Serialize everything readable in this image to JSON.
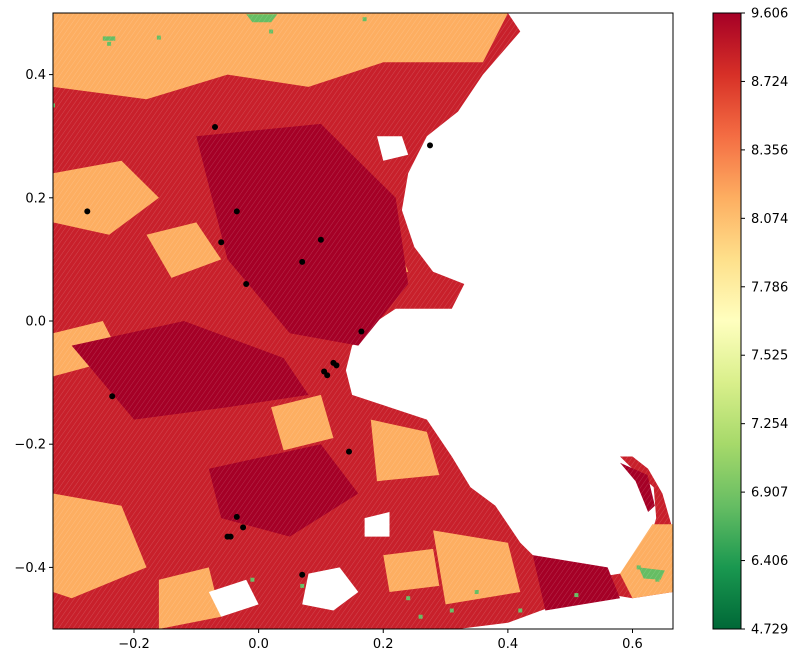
{
  "chart_data": {
    "type": "scatter",
    "title": "",
    "xlabel": "",
    "ylabel": "",
    "xlim": [
      -0.33,
      0.665
    ],
    "ylim": [
      -0.5,
      0.5
    ],
    "x_ticks": [
      -0.2,
      0.0,
      0.2,
      0.4,
      0.6
    ],
    "y_ticks": [
      0.4,
      0.2,
      0.0,
      -0.2,
      -0.4
    ],
    "x_tick_labels": [
      "−0.2",
      "0.0",
      "0.2",
      "0.4",
      "0.6"
    ],
    "y_tick_labels": [
      "0.4",
      "0.2",
      "0.0",
      "−0.2",
      "−0.4"
    ],
    "grid": false,
    "colormap": "RdYlGn_r",
    "colorbar": {
      "min": 4.729,
      "max": 9.606,
      "tick_labels": [
        "9.606",
        "8.724",
        "8.356",
        "8.074",
        "7.786",
        "7.525",
        "7.254",
        "6.907",
        "6.406",
        "4.729"
      ],
      "colors": [
        "#006837",
        "#1a9850",
        "#66bd63",
        "#a6d96a",
        "#d9ef8b",
        "#ffffbf",
        "#fee08b",
        "#fdae61",
        "#f46d43",
        "#d73027",
        "#a50026"
      ]
    },
    "colors": {
      "dark_red": "#a50026",
      "red": "#c8202b",
      "mid_red": "#d73027",
      "orange": "#fdae61",
      "light_orange": "#fdd08a",
      "green": "#66bd63",
      "black": "#000000"
    },
    "land_regions": [
      {
        "name": "mainland",
        "poly": [
          [
            -0.33,
            0.5
          ],
          [
            0.4,
            0.5
          ],
          [
            0.42,
            0.47
          ],
          [
            0.36,
            0.4
          ],
          [
            0.32,
            0.34
          ],
          [
            0.27,
            0.3
          ],
          [
            0.24,
            0.24
          ],
          [
            0.23,
            0.18
          ],
          [
            0.25,
            0.12
          ],
          [
            0.28,
            0.08
          ],
          [
            0.33,
            0.06
          ],
          [
            0.31,
            0.02
          ],
          [
            0.22,
            0.02
          ],
          [
            0.19,
            0.0
          ],
          [
            0.15,
            -0.04
          ],
          [
            0.14,
            -0.08
          ],
          [
            0.15,
            -0.12
          ],
          [
            0.21,
            -0.14
          ],
          [
            0.27,
            -0.16
          ],
          [
            0.31,
            -0.22
          ],
          [
            0.34,
            -0.27
          ],
          [
            0.38,
            -0.3
          ],
          [
            0.42,
            -0.36
          ],
          [
            0.44,
            -0.38
          ],
          [
            0.46,
            -0.4
          ],
          [
            0.52,
            -0.42
          ],
          [
            0.58,
            -0.41
          ],
          [
            0.62,
            -0.38
          ],
          [
            0.638,
            -0.32
          ],
          [
            0.634,
            -0.27
          ],
          [
            0.6,
            -0.24
          ],
          [
            0.58,
            -0.22
          ],
          [
            0.6,
            -0.22
          ],
          [
            0.625,
            -0.24
          ],
          [
            0.648,
            -0.28
          ],
          [
            0.665,
            -0.34
          ],
          [
            0.665,
            -0.44
          ],
          [
            0.6,
            -0.45
          ],
          [
            0.54,
            -0.44
          ],
          [
            0.48,
            -0.46
          ],
          [
            0.4,
            -0.49
          ],
          [
            0.32,
            -0.5
          ],
          [
            -0.33,
            -0.5
          ]
        ]
      }
    ],
    "water_holes": [
      {
        "name": "bay-inlet-north",
        "poly": [
          [
            0.19,
            0.3
          ],
          [
            0.23,
            0.3
          ],
          [
            0.24,
            0.27
          ],
          [
            0.2,
            0.26
          ]
        ]
      },
      {
        "name": "bay-inlet-south",
        "poly": [
          [
            0.08,
            -0.41
          ],
          [
            0.13,
            -0.4
          ],
          [
            0.16,
            -0.44
          ],
          [
            0.12,
            -0.47
          ],
          [
            0.07,
            -0.46
          ]
        ]
      },
      {
        "name": "bay-inlet-southwest",
        "poly": [
          [
            -0.08,
            -0.44
          ],
          [
            -0.02,
            -0.42
          ],
          [
            0.0,
            -0.46
          ],
          [
            -0.06,
            -0.48
          ]
        ]
      },
      {
        "name": "harbor-islands",
        "poly": [
          [
            0.17,
            -0.32
          ],
          [
            0.21,
            -0.31
          ],
          [
            0.21,
            -0.35
          ],
          [
            0.17,
            -0.35
          ]
        ]
      }
    ],
    "patches": [
      {
        "tone": "orange",
        "poly": [
          [
            -0.33,
            0.5
          ],
          [
            0.4,
            0.5
          ],
          [
            0.36,
            0.42
          ],
          [
            0.2,
            0.42
          ],
          [
            0.08,
            0.38
          ],
          [
            -0.05,
            0.4
          ],
          [
            -0.18,
            0.36
          ],
          [
            -0.33,
            0.38
          ]
        ]
      },
      {
        "tone": "orange",
        "poly": [
          [
            -0.33,
            0.24
          ],
          [
            -0.22,
            0.26
          ],
          [
            -0.16,
            0.2
          ],
          [
            -0.24,
            0.14
          ],
          [
            -0.33,
            0.16
          ]
        ]
      },
      {
        "tone": "orange",
        "poly": [
          [
            -0.18,
            0.14
          ],
          [
            -0.1,
            0.16
          ],
          [
            -0.06,
            0.1
          ],
          [
            -0.14,
            0.07
          ]
        ]
      },
      {
        "tone": "orange",
        "poly": [
          [
            0.11,
            0.12
          ],
          [
            0.22,
            0.13
          ],
          [
            0.24,
            0.08
          ],
          [
            0.14,
            0.05
          ]
        ]
      },
      {
        "tone": "orange",
        "poly": [
          [
            0.05,
            0.26
          ],
          [
            0.14,
            0.28
          ],
          [
            0.17,
            0.22
          ],
          [
            0.08,
            0.2
          ]
        ]
      },
      {
        "tone": "orange",
        "poly": [
          [
            -0.33,
            -0.02
          ],
          [
            -0.25,
            0.0
          ],
          [
            -0.22,
            -0.06
          ],
          [
            -0.33,
            -0.09
          ]
        ]
      },
      {
        "tone": "orange",
        "poly": [
          [
            0.02,
            -0.14
          ],
          [
            0.1,
            -0.12
          ],
          [
            0.12,
            -0.19
          ],
          [
            0.04,
            -0.21
          ]
        ]
      },
      {
        "tone": "orange",
        "poly": [
          [
            0.18,
            -0.16
          ],
          [
            0.27,
            -0.18
          ],
          [
            0.29,
            -0.25
          ],
          [
            0.19,
            -0.26
          ]
        ]
      },
      {
        "tone": "orange",
        "poly": [
          [
            -0.33,
            -0.28
          ],
          [
            -0.22,
            -0.3
          ],
          [
            -0.18,
            -0.4
          ],
          [
            -0.3,
            -0.45
          ],
          [
            -0.33,
            -0.44
          ]
        ]
      },
      {
        "tone": "orange",
        "poly": [
          [
            -0.16,
            -0.42
          ],
          [
            -0.08,
            -0.4
          ],
          [
            -0.06,
            -0.48
          ],
          [
            -0.16,
            -0.5
          ]
        ]
      },
      {
        "tone": "orange",
        "poly": [
          [
            0.28,
            -0.34
          ],
          [
            0.4,
            -0.36
          ],
          [
            0.42,
            -0.44
          ],
          [
            0.3,
            -0.46
          ]
        ]
      },
      {
        "tone": "orange",
        "poly": [
          [
            0.2,
            -0.38
          ],
          [
            0.28,
            -0.37
          ],
          [
            0.29,
            -0.43
          ],
          [
            0.21,
            -0.44
          ]
        ]
      },
      {
        "tone": "orange",
        "poly": [
          [
            0.58,
            -0.41
          ],
          [
            0.632,
            -0.33
          ],
          [
            0.665,
            -0.33
          ],
          [
            0.665,
            -0.44
          ],
          [
            0.6,
            -0.45
          ]
        ]
      },
      {
        "tone": "orange",
        "poly": [
          [
            0.02,
            0.48
          ],
          [
            0.3,
            0.48
          ],
          [
            0.28,
            0.43
          ],
          [
            0.04,
            0.43
          ]
        ]
      },
      {
        "tone": "dark_red",
        "poly": [
          [
            -0.1,
            0.3
          ],
          [
            0.1,
            0.32
          ],
          [
            0.22,
            0.2
          ],
          [
            0.24,
            0.06
          ],
          [
            0.16,
            -0.04
          ],
          [
            0.05,
            -0.02
          ],
          [
            -0.05,
            0.1
          ]
        ]
      },
      {
        "tone": "dark_red",
        "poly": [
          [
            -0.3,
            -0.04
          ],
          [
            -0.12,
            0.0
          ],
          [
            0.04,
            -0.06
          ],
          [
            0.08,
            -0.12
          ],
          [
            -0.05,
            -0.14
          ],
          [
            -0.2,
            -0.16
          ]
        ]
      },
      {
        "tone": "dark_red",
        "poly": [
          [
            -0.08,
            -0.24
          ],
          [
            0.1,
            -0.2
          ],
          [
            0.16,
            -0.28
          ],
          [
            0.05,
            -0.35
          ],
          [
            -0.06,
            -0.32
          ]
        ]
      },
      {
        "tone": "dark_red",
        "poly": [
          [
            0.44,
            -0.38
          ],
          [
            0.56,
            -0.4
          ],
          [
            0.58,
            -0.45
          ],
          [
            0.46,
            -0.47
          ]
        ]
      },
      {
        "tone": "dark_red",
        "poly": [
          [
            0.58,
            -0.23
          ],
          [
            0.624,
            -0.25
          ],
          [
            0.636,
            -0.3
          ],
          [
            0.625,
            -0.31
          ],
          [
            0.605,
            -0.26
          ]
        ]
      },
      {
        "tone": "green",
        "poly": [
          [
            -0.02,
            0.498
          ],
          [
            0.03,
            0.498
          ],
          [
            0.02,
            0.485
          ],
          [
            -0.01,
            0.485
          ]
        ]
      },
      {
        "tone": "green",
        "poly": [
          [
            -0.25,
            0.462
          ],
          [
            -0.23,
            0.462
          ],
          [
            -0.23,
            0.455
          ],
          [
            -0.25,
            0.455
          ]
        ]
      },
      {
        "tone": "green",
        "poly": [
          [
            0.61,
            -0.4
          ],
          [
            0.652,
            -0.405
          ],
          [
            0.645,
            -0.42
          ],
          [
            0.618,
            -0.418
          ]
        ]
      }
    ],
    "green_specks": [
      [
        -0.16,
        0.46
      ],
      [
        -0.24,
        0.45
      ],
      [
        0.02,
        0.47
      ],
      [
        0.17,
        0.49
      ],
      [
        0.61,
        -0.4
      ],
      [
        0.64,
        -0.42
      ],
      [
        0.07,
        -0.43
      ],
      [
        -0.01,
        -0.42
      ],
      [
        0.24,
        -0.45
      ],
      [
        0.31,
        -0.47
      ],
      [
        0.42,
        -0.47
      ],
      [
        0.51,
        -0.445
      ],
      [
        -0.33,
        0.35
      ],
      [
        0.26,
        -0.48
      ],
      [
        0.35,
        -0.44
      ]
    ],
    "black_points": [
      [
        -0.07,
        0.315
      ],
      [
        -0.275,
        0.178
      ],
      [
        -0.035,
        0.178
      ],
      [
        -0.06,
        0.128
      ],
      [
        0.1,
        0.132
      ],
      [
        0.07,
        0.096
      ],
      [
        -0.02,
        0.06
      ],
      [
        0.165,
        -0.017
      ],
      [
        0.12,
        -0.068
      ],
      [
        0.125,
        -0.072
      ],
      [
        0.105,
        -0.082
      ],
      [
        0.11,
        -0.088
      ],
      [
        -0.235,
        -0.122
      ],
      [
        0.145,
        -0.212
      ],
      [
        -0.035,
        -0.318
      ],
      [
        -0.025,
        -0.335
      ],
      [
        -0.045,
        -0.35
      ],
      [
        -0.05,
        -0.35
      ],
      [
        0.07,
        -0.412
      ],
      [
        0.275,
        0.285
      ]
    ]
  }
}
